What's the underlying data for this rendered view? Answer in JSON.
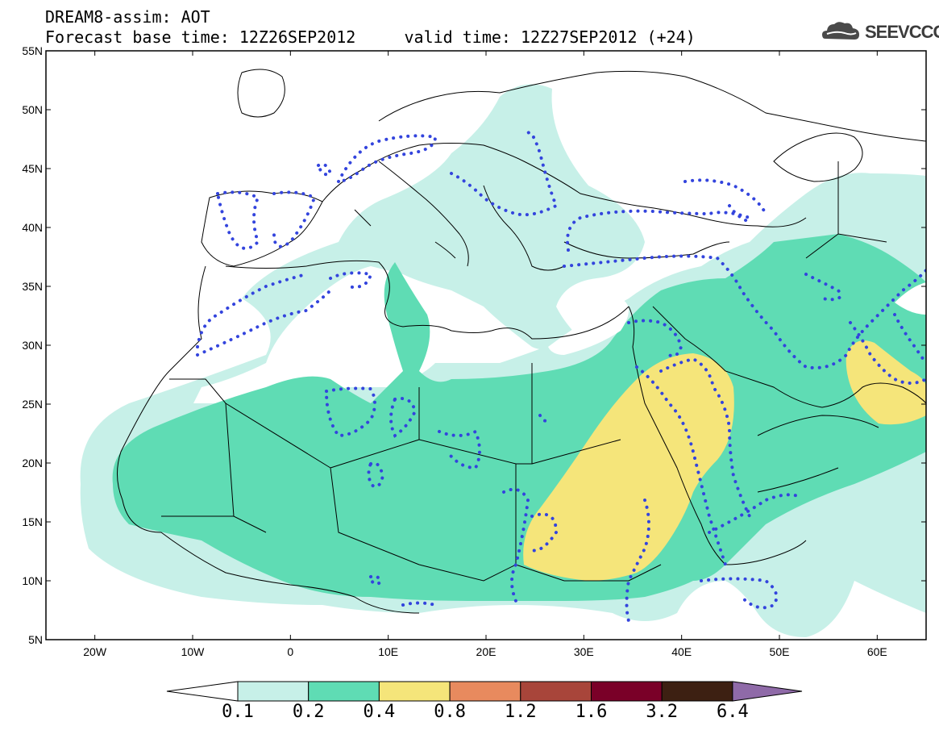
{
  "header": {
    "line1": "DREAM8-assim: AOT",
    "line2": "Forecast base time: 12Z26SEP2012     valid time: 12Z27SEP2012 (+24)",
    "logo_text": "SEEVCCC"
  },
  "map": {
    "lon_range": [
      -25,
      65
    ],
    "lat_range": [
      5,
      55
    ],
    "lat_ticks": [
      "5N",
      "10N",
      "15N",
      "20N",
      "25N",
      "30N",
      "35N",
      "40N",
      "45N",
      "50N",
      "55N"
    ],
    "lon_ticks": [
      "20W",
      "10W",
      "0",
      "10E",
      "20E",
      "30E",
      "40E",
      "50E",
      "60E"
    ],
    "field": "AOT",
    "fill_colors": {
      "0.1-0.2": "#c7f0e8",
      "0.2-0.4": "#5fdcb4",
      "0.4-0.8": "#f5e57a"
    },
    "contour_color": "#3344dd"
  },
  "colorbar": {
    "labels": [
      "0.1",
      "0.2",
      "0.4",
      "0.8",
      "1.2",
      "1.6",
      "3.2",
      "6.4"
    ],
    "colors": [
      "#ffffff",
      "#c7f0e8",
      "#5fdcb4",
      "#f5e57a",
      "#e88a5e",
      "#a8453a",
      "#7a0028",
      "#3d2012",
      "#8f6aa8"
    ]
  }
}
